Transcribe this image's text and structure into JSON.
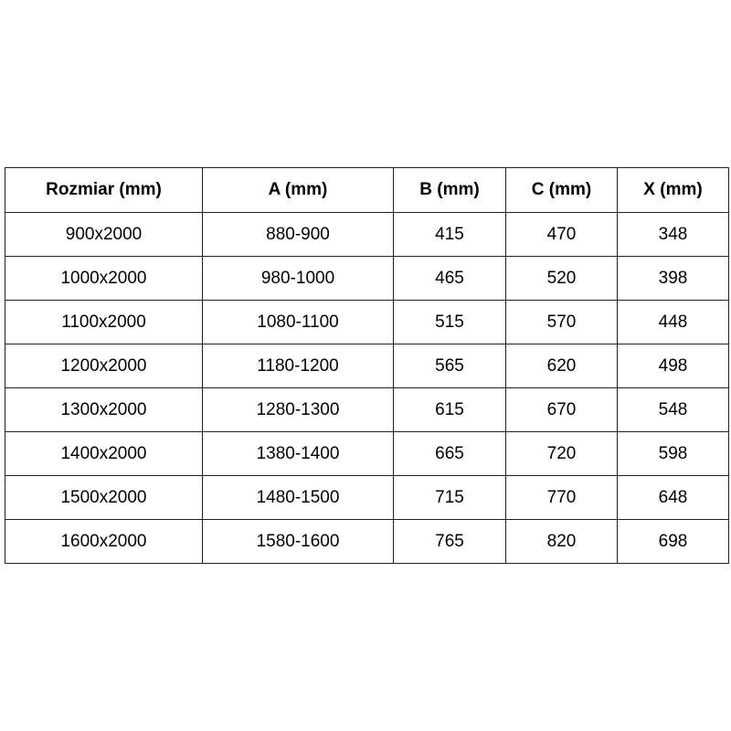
{
  "table": {
    "headers": [
      "Rozmiar (mm)",
      "A (mm)",
      "B (mm)",
      "C (mm)",
      "X (mm)"
    ],
    "rows": [
      [
        "900x2000",
        "880-900",
        "415",
        "470",
        "348"
      ],
      [
        "1000x2000",
        "980-1000",
        "465",
        "520",
        "398"
      ],
      [
        "1100x2000",
        "1080-1100",
        "515",
        "570",
        "448"
      ],
      [
        "1200x2000",
        "1180-1200",
        "565",
        "620",
        "498"
      ],
      [
        "1300x2000",
        "1280-1300",
        "615",
        "670",
        "548"
      ],
      [
        "1400x2000",
        "1380-1400",
        "665",
        "720",
        "598"
      ],
      [
        "1500x2000",
        "1480-1500",
        "715",
        "770",
        "648"
      ],
      [
        "1600x2000",
        "1580-1600",
        "765",
        "820",
        "698"
      ]
    ]
  }
}
